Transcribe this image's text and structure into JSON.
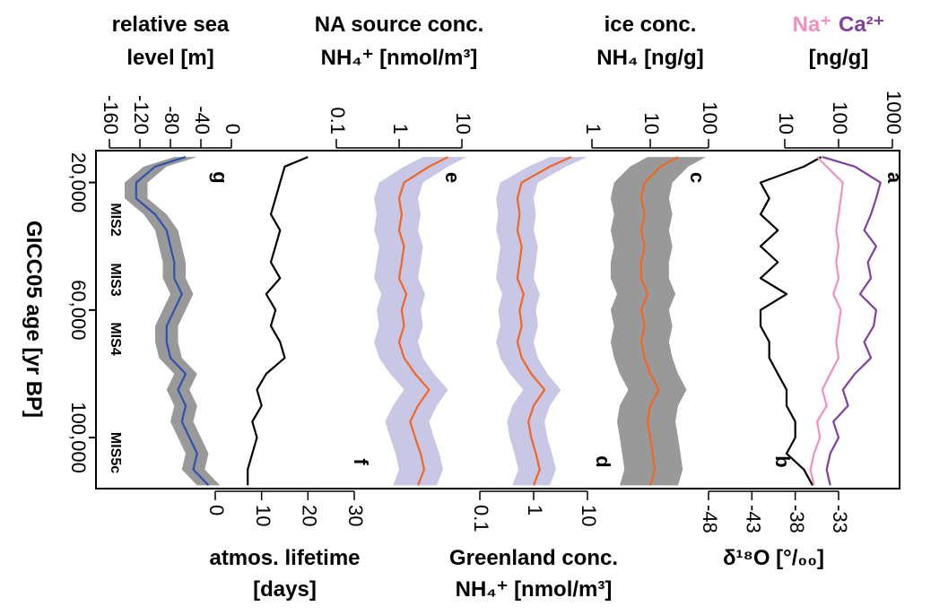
{
  "chart_data": {
    "type": "line",
    "xlabel": "GICC05 age [yr BP]",
    "x": [
      12000,
      15000,
      20000,
      25000,
      30000,
      35000,
      40000,
      45000,
      50000,
      55000,
      60000,
      65000,
      70000,
      75000,
      80000,
      85000,
      90000,
      95000,
      100000,
      105000,
      110000,
      115000
    ],
    "xlim": [
      10000,
      116000
    ],
    "xticks": [
      {
        "value": 20000,
        "label": "20,000"
      },
      {
        "value": 60000,
        "label": "60,000"
      },
      {
        "value": 100000,
        "label": "100,000"
      }
    ],
    "annotations": [
      "MIS2",
      "MIS3",
      "MIS4",
      "MIS5c"
    ],
    "panels": [
      {
        "letter": "g",
        "axis_label": [
          "relative sea",
          "level [m]"
        ],
        "axis_side": "top",
        "log": false,
        "lim": [
          -160,
          0
        ],
        "ticks": [
          -160,
          -120,
          -80,
          -40,
          0
        ],
        "series": [
          {
            "color": "#3050b0",
            "band_color": "#999999",
            "values": [
              -60,
              -100,
              -125,
              -125,
              -100,
              -85,
              -80,
              -75,
              -75,
              -65,
              -75,
              -85,
              -85,
              -80,
              -60,
              -70,
              -60,
              -65,
              -55,
              -45,
              -50,
              -30
            ],
            "lower": [
              -75,
              -115,
              -140,
              -140,
              -115,
              -100,
              -95,
              -90,
              -90,
              -80,
              -90,
              -100,
              -100,
              -95,
              -75,
              -85,
              -75,
              -80,
              -70,
              -60,
              -65,
              -45
            ],
            "upper": [
              -45,
              -85,
              -110,
              -110,
              -85,
              -70,
              -65,
              -60,
              -60,
              -50,
              -60,
              -70,
              -70,
              -65,
              -45,
              -55,
              -45,
              -50,
              -40,
              -30,
              -35,
              -15
            ]
          }
        ]
      },
      {
        "letter": "f",
        "axis_label": [
          "atmos. lifetime",
          "[days]"
        ],
        "axis_side": "bottom",
        "log": false,
        "lim": [
          0,
          30
        ],
        "ticks": [
          0,
          10,
          20,
          30
        ],
        "series": [
          {
            "color": "#000000",
            "values": [
              20,
              15,
              14,
              13,
              12,
              14,
              13,
              12,
              14,
              11,
              13,
              12,
              14,
              15,
              11,
              9,
              10,
              8,
              9,
              8,
              7,
              7
            ]
          }
        ]
      },
      {
        "letter": "e",
        "axis_label": [
          "NA source conc.",
          "NH₄⁺  [nmol/m³]"
        ],
        "axis_side": "top",
        "log": true,
        "lim": [
          0.1,
          10
        ],
        "ticks": [
          0.1,
          1,
          10
        ],
        "series": [
          {
            "color": "#f26522",
            "band_color": "#c8c8e6",
            "values": [
              6,
              3,
              1.2,
              1.0,
              1.1,
              1.0,
              1.2,
              1.1,
              1.0,
              1.3,
              1.1,
              1.2,
              1.0,
              1.2,
              1.8,
              3.0,
              2.0,
              1.5,
              1.8,
              2.2,
              2.5,
              2.0
            ],
            "lower": [
              2.4,
              1.2,
              0.48,
              0.4,
              0.44,
              0.4,
              0.48,
              0.44,
              0.4,
              0.52,
              0.44,
              0.48,
              0.4,
              0.48,
              0.72,
              1.2,
              0.8,
              0.6,
              0.72,
              0.88,
              1.0,
              0.8
            ],
            "upper": [
              12,
              6,
              2.4,
              2.0,
              2.2,
              2.0,
              2.4,
              2.2,
              2.0,
              2.6,
              2.2,
              2.4,
              2.0,
              2.4,
              3.6,
              6.0,
              4.0,
              3.0,
              3.6,
              4.4,
              5.0,
              4.0
            ]
          }
        ]
      },
      {
        "letter": "d",
        "axis_label": [
          "Greenland conc.",
          "NH₄⁺  [nmol/m³]"
        ],
        "axis_side": "bottom",
        "log": true,
        "lim": [
          0.1,
          10
        ],
        "ticks": [
          0.1,
          1,
          10
        ],
        "series": [
          {
            "color": "#f26522",
            "band_color": "#c8c8e6",
            "values": [
              5,
              2,
              0.6,
              0.5,
              0.55,
              0.5,
              0.6,
              0.55,
              0.5,
              0.65,
              0.55,
              0.6,
              0.5,
              0.6,
              0.9,
              1.6,
              1.0,
              0.8,
              0.9,
              1.1,
              1.3,
              1.0
            ],
            "lower": [
              2,
              0.8,
              0.24,
              0.2,
              0.22,
              0.2,
              0.24,
              0.22,
              0.2,
              0.26,
              0.22,
              0.24,
              0.2,
              0.24,
              0.36,
              0.64,
              0.4,
              0.32,
              0.36,
              0.44,
              0.52,
              0.4
            ],
            "upper": [
              10,
              4,
              1.2,
              1.0,
              1.1,
              1.0,
              1.2,
              1.1,
              1.0,
              1.3,
              1.1,
              1.2,
              1.0,
              1.2,
              1.8,
              3.2,
              2.0,
              1.6,
              1.8,
              2.2,
              2.6,
              2.0
            ]
          }
        ]
      },
      {
        "letter": "c",
        "axis_label": [
          "ice conc.",
          "NH₄  [ng/g]"
        ],
        "axis_side": "top",
        "log": true,
        "lim": [
          1,
          100
        ],
        "ticks": [
          1,
          10,
          100
        ],
        "series": [
          {
            "color": "#f26522",
            "band_color": "#999999",
            "values": [
              30,
              15,
              8,
              7,
              8,
              7,
              8,
              7,
              7,
              9,
              7,
              8,
              7,
              8,
              10,
              14,
              10,
              9,
              10,
              11,
              12,
              10
            ],
            "lower": [
              9,
              4.5,
              2.4,
              2.1,
              2.4,
              2.1,
              2.4,
              2.1,
              2.1,
              2.7,
              2.1,
              2.4,
              2.1,
              2.4,
              3,
              4.2,
              3,
              2.7,
              3,
              3.3,
              3.6,
              3
            ],
            "upper": [
              90,
              45,
              24,
              21,
              24,
              21,
              24,
              21,
              21,
              27,
              21,
              24,
              21,
              24,
              30,
              42,
              30,
              27,
              30,
              33,
              36,
              30
            ]
          }
        ]
      },
      {
        "letter": "b",
        "axis_label": [
          "δ¹⁸O  [°/₀₀]"
        ],
        "axis_side": "bottom",
        "log": false,
        "lim": [
          -48,
          -33
        ],
        "ticks": [
          -48,
          -43,
          -38,
          -33
        ],
        "series": [
          {
            "color": "#000000",
            "values": [
              -35,
              -37,
              -42,
              -41,
              -42,
              -40,
              -42,
              -40,
              -42,
              -39,
              -42,
              -42,
              -41,
              -41,
              -40,
              -39,
              -39,
              -38,
              -38,
              -39,
              -37,
              -36
            ]
          }
        ]
      },
      {
        "letter": "a",
        "axis_label": [
          "[ng/g]"
        ],
        "axis_side": "top",
        "log": true,
        "lim": [
          10,
          1000
        ],
        "ticks": [
          10,
          100,
          1000
        ],
        "series": [
          {
            "name": "Na⁺",
            "color": "#f190c0",
            "values": [
              40,
              60,
              120,
              110,
              100,
              90,
              100,
              90,
              100,
              80,
              110,
              100,
              90,
              100,
              70,
              50,
              60,
              40,
              45,
              35,
              30,
              35
            ]
          },
          {
            "name": "Ca²⁺",
            "color": "#8040a0",
            "values": [
              50,
              200,
              600,
              500,
              400,
              300,
              500,
              350,
              400,
              250,
              500,
              450,
              300,
              400,
              200,
              120,
              150,
              80,
              100,
              70,
              60,
              70
            ]
          }
        ]
      }
    ]
  }
}
